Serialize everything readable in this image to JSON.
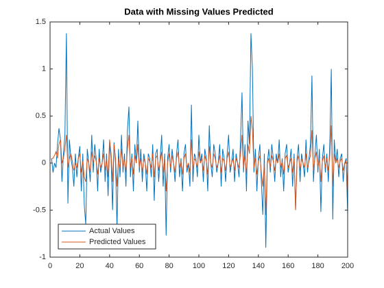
{
  "chart_data": {
    "type": "line",
    "title": "Data with Missing Values Predicted",
    "x": [
      1,
      2,
      3,
      4,
      5,
      6,
      7,
      8,
      9,
      10,
      11,
      12,
      13,
      14,
      15,
      16,
      17,
      18,
      19,
      20,
      21,
      22,
      23,
      24,
      25,
      26,
      27,
      28,
      29,
      30,
      31,
      32,
      33,
      34,
      35,
      36,
      37,
      38,
      39,
      40,
      41,
      42,
      43,
      44,
      45,
      46,
      47,
      48,
      49,
      50,
      51,
      52,
      53,
      54,
      55,
      56,
      57,
      58,
      59,
      60,
      61,
      62,
      63,
      64,
      65,
      66,
      67,
      68,
      69,
      70,
      71,
      72,
      73,
      74,
      75,
      76,
      77,
      78,
      79,
      80,
      81,
      82,
      83,
      84,
      85,
      86,
      87,
      88,
      89,
      90,
      91,
      92,
      93,
      94,
      95,
      96,
      97,
      98,
      99,
      100,
      101,
      102,
      103,
      104,
      105,
      106,
      107,
      108,
      109,
      110,
      111,
      112,
      113,
      114,
      115,
      116,
      117,
      118,
      119,
      120,
      121,
      122,
      123,
      124,
      125,
      126,
      127,
      128,
      129,
      130,
      131,
      132,
      133,
      134,
      135,
      136,
      137,
      138,
      139,
      140,
      141,
      142,
      143,
      144,
      145,
      146,
      147,
      148,
      149,
      150,
      151,
      152,
      153,
      154,
      155,
      156,
      157,
      158,
      159,
      160,
      161,
      162,
      163,
      164,
      165,
      166,
      167,
      168,
      169,
      170,
      171,
      172,
      173,
      174,
      175,
      176,
      177,
      178,
      179,
      180,
      181,
      182,
      183,
      184,
      185,
      186,
      187,
      188,
      189,
      190,
      191,
      192,
      193,
      194,
      195,
      196,
      197,
      198,
      199,
      200
    ],
    "series": [
      {
        "name": "Actual Values",
        "color": "#0072BD",
        "values": [
          0.05,
          -0.1,
          0.0,
          -0.05,
          0.2,
          0.37,
          0.25,
          -0.2,
          0.1,
          0.3,
          1.38,
          -0.43,
          0.25,
          0.05,
          -0.05,
          -0.25,
          0.1,
          -0.15,
          0.05,
          0.18,
          -0.3,
          0.1,
          -0.45,
          -0.65,
          0.15,
          0.0,
          -0.2,
          0.3,
          -0.1,
          0.2,
          0.05,
          -0.3,
          0.15,
          -0.1,
          0.0,
          0.25,
          -0.2,
          0.1,
          -0.35,
          0.2,
          0.05,
          -0.5,
          0.22,
          0.0,
          -0.7,
          0.15,
          -0.15,
          0.3,
          -0.1,
          0.1,
          -0.25,
          0.35,
          0.6,
          -0.15,
          0.1,
          -0.3,
          0.2,
          0.0,
          0.45,
          -0.1,
          0.15,
          -0.2,
          0.1,
          0.0,
          -0.3,
          0.1,
          0.05,
          -0.15,
          0.2,
          -0.4,
          0.1,
          0.15,
          -0.2,
          0.05,
          0.3,
          -0.25,
          0.1,
          -0.77,
          0.05,
          0.2,
          -0.1,
          0.15,
          0.0,
          -0.2,
          0.1,
          0.25,
          -0.15,
          0.05,
          -0.3,
          0.1,
          0.2,
          -0.1,
          0.0,
          -0.25,
          0.62,
          -0.2,
          0.1,
          0.05,
          -0.15,
          0.3,
          0.0,
          0.1,
          -0.2,
          0.15,
          0.05,
          -0.3,
          0.4,
          0.0,
          -0.15,
          0.2,
          0.1,
          -0.1,
          0.0,
          0.2,
          -0.25,
          0.15,
          0.05,
          -0.2,
          0.1,
          0.3,
          -0.1,
          0.0,
          0.15,
          -0.2,
          0.1,
          0.0,
          -0.15,
          0.25,
          0.75,
          -0.1,
          0.2,
          -0.3,
          0.45,
          0.2,
          1.38,
          1.0,
          -0.1,
          0.15,
          -0.3,
          0.05,
          0.2,
          -0.2,
          -0.55,
          0.1,
          -0.9,
          0.0,
          0.15,
          -0.1,
          0.2,
          0.05,
          -0.2,
          0.1,
          0.0,
          0.25,
          -0.15,
          0.05,
          -0.3,
          0.1,
          0.2,
          -0.1,
          0.0,
          0.15,
          -0.25,
          0.1,
          -0.5,
          0.05,
          0.2,
          -0.2,
          0.1,
          0.0,
          -0.15,
          0.25,
          -0.1,
          0.05,
          0.2,
          0.93,
          -0.2,
          0.1,
          0.3,
          -0.1,
          0.15,
          -0.52,
          0.05,
          0.2,
          -0.1,
          0.1,
          -0.2,
          0.2,
          1.0,
          -0.6,
          0.25,
          0.0,
          0.15,
          -0.15,
          0.05,
          0.1,
          -0.2,
          0.0,
          0.05,
          -0.55
        ]
      },
      {
        "name": "Predicted Values",
        "color": "#D95319",
        "values": [
          0.05,
          0.05,
          0.08,
          0.12,
          0.05,
          0.2,
          0.25,
          0.0,
          0.05,
          0.15,
          0.3,
          -0.05,
          0.05,
          0.1,
          0.02,
          -0.08,
          0.0,
          -0.05,
          0.05,
          0.1,
          -0.1,
          0.02,
          -0.15,
          -0.2,
          0.05,
          0.0,
          -0.1,
          0.12,
          0.0,
          0.08,
          0.02,
          -0.12,
          0.05,
          -0.05,
          0.0,
          0.1,
          -0.08,
          0.05,
          -0.15,
          0.25,
          0.1,
          -0.2,
          0.2,
          0.05,
          -0.25,
          0.05,
          -0.05,
          0.15,
          -0.05,
          0.05,
          -0.1,
          0.15,
          0.3,
          -0.05,
          0.05,
          -0.12,
          0.08,
          0.0,
          0.2,
          -0.05,
          0.05,
          -0.1,
          0.05,
          0.0,
          -0.12,
          0.05,
          0.02,
          -0.05,
          0.1,
          -0.15,
          0.05,
          0.08,
          -0.08,
          0.02,
          0.12,
          -0.1,
          0.05,
          -0.3,
          0.0,
          0.1,
          -0.05,
          0.08,
          0.0,
          -0.1,
          0.05,
          0.12,
          -0.05,
          0.02,
          -0.12,
          0.05,
          0.1,
          -0.05,
          0.0,
          -0.1,
          0.25,
          -0.08,
          0.05,
          0.02,
          -0.05,
          0.12,
          0.0,
          0.05,
          -0.08,
          0.08,
          0.02,
          -0.12,
          0.18,
          0.0,
          -0.05,
          0.1,
          0.05,
          -0.05,
          0.0,
          0.08,
          -0.1,
          0.05,
          0.02,
          -0.08,
          0.05,
          0.12,
          -0.05,
          0.0,
          0.05,
          -0.08,
          0.05,
          0.0,
          -0.05,
          0.1,
          0.3,
          -0.05,
          0.08,
          -0.12,
          0.2,
          0.1,
          0.5,
          0.35,
          -0.05,
          0.05,
          -0.12,
          0.02,
          0.08,
          -0.1,
          -0.25,
          0.0,
          -0.55,
          0.0,
          0.05,
          -0.05,
          0.08,
          0.02,
          -0.08,
          0.05,
          0.0,
          0.1,
          -0.05,
          0.02,
          -0.12,
          0.05,
          0.08,
          -0.05,
          0.0,
          0.05,
          -0.1,
          0.05,
          -0.5,
          0.02,
          0.08,
          -0.08,
          0.05,
          0.0,
          -0.05,
          0.1,
          -0.05,
          0.02,
          0.08,
          0.35,
          -0.08,
          0.05,
          0.12,
          -0.05,
          0.05,
          -0.2,
          0.02,
          0.08,
          -0.05,
          0.05,
          -0.08,
          0.08,
          0.4,
          -0.25,
          0.1,
          0.0,
          0.05,
          -0.05,
          0.02,
          0.05,
          -0.08,
          0.0,
          0.02,
          -0.3
        ]
      }
    ],
    "xlim": [
      0,
      200
    ],
    "xticks": [
      0,
      20,
      40,
      60,
      80,
      100,
      120,
      140,
      160,
      180,
      200
    ],
    "ylim": [
      -1,
      1.5
    ],
    "yticks": [
      -1,
      -0.5,
      0,
      0.5,
      1,
      1.5
    ],
    "legend": "southwest"
  }
}
